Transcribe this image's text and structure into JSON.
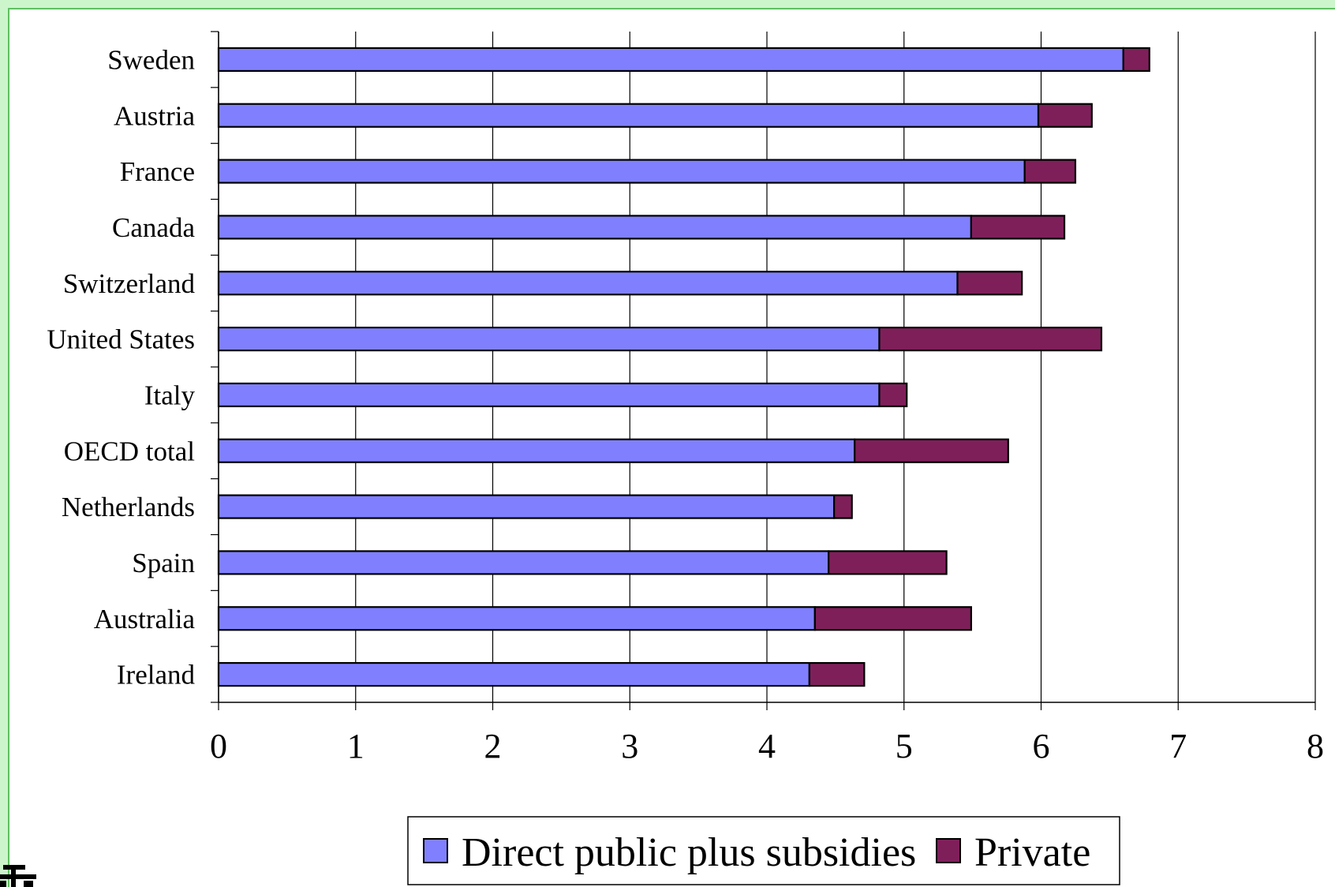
{
  "chart_data": {
    "type": "bar",
    "orientation": "horizontal",
    "stacked": true,
    "categories": [
      "Sweden",
      "Austria",
      "France",
      "Canada",
      "Switzerland",
      "United States",
      "Italy",
      "OECD total",
      "Netherlands",
      "Spain",
      "Australia",
      "Ireland"
    ],
    "series": [
      {
        "name": "Direct public plus subsidies",
        "color": "#8080ff",
        "values": [
          6.6,
          5.98,
          5.88,
          5.49,
          5.39,
          4.82,
          4.82,
          4.64,
          4.49,
          4.45,
          4.35,
          4.31
        ]
      },
      {
        "name": "Private",
        "color": "#7f1f5a",
        "values": [
          0.19,
          0.39,
          0.37,
          0.68,
          0.47,
          1.62,
          0.2,
          1.12,
          0.13,
          0.86,
          1.14,
          0.4
        ]
      }
    ],
    "xlim": [
      0,
      8
    ],
    "xticks": [
      "0",
      "1",
      "2",
      "3",
      "4",
      "5",
      "6",
      "7",
      "8"
    ],
    "grid": "vertical",
    "legend_position": "bottom-center",
    "title": "",
    "xlabel": "",
    "ylabel": ""
  }
}
